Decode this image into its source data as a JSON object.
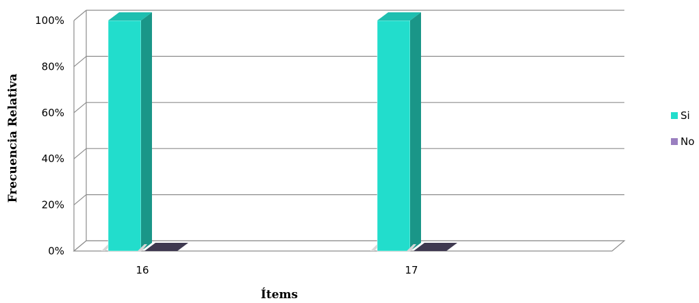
{
  "chart_data": {
    "type": "bar",
    "title": "",
    "xlabel": "Ítems",
    "ylabel": "Frecuencia Relativa",
    "categories": [
      "16",
      "17"
    ],
    "ylim": [
      0,
      100
    ],
    "y_ticks": [
      0,
      20,
      40,
      60,
      80,
      100
    ],
    "y_tick_suffix": "%",
    "y_tick_labels": [
      "0%",
      "20%",
      "40%",
      "60%",
      "80%",
      "100%"
    ],
    "series": [
      {
        "name": "Si",
        "values": [
          100,
          100
        ],
        "color": "#22DDCC",
        "side_color": "#1A9688",
        "top_color": "#1FBFB0"
      },
      {
        "name": "No",
        "values": [
          0,
          0
        ],
        "color": "#9A7FC0",
        "side_color": "#3F3950",
        "top_color": "#3F3950"
      }
    ],
    "legend_position": "right",
    "grid": true,
    "style": "3d-bar"
  }
}
